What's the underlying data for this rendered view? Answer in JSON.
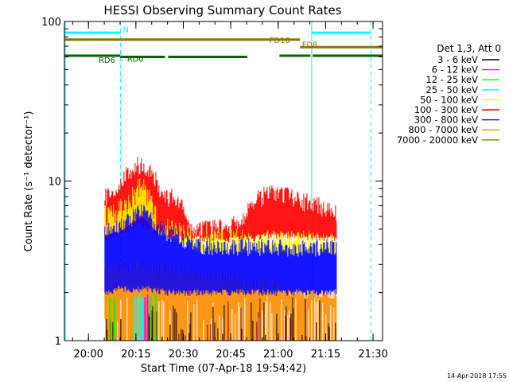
{
  "chart_data": {
    "type": "line",
    "title": "HESSI Observing Summary Count Rates",
    "xlabel": "Start Time (07-Apr-18 19:54:42)",
    "ylabel": "Count Rate (s⁻¹ detector⁻¹)",
    "yscale": "log",
    "ylim": [
      1,
      100
    ],
    "xlim_min": [
      -2.3,
      98.3
    ],
    "x_ticks": [
      {
        "t": 5.3,
        "label": "20:00"
      },
      {
        "t": 20.3,
        "label": "20:15"
      },
      {
        "t": 35.3,
        "label": "20:30"
      },
      {
        "t": 50.3,
        "label": "20:45"
      },
      {
        "t": 65.3,
        "label": "21:00"
      },
      {
        "t": 80.3,
        "label": "21:15"
      },
      {
        "t": 95.3,
        "label": "21:30"
      }
    ],
    "y_ticks": [
      {
        "v": 1,
        "label": "1"
      },
      {
        "v": 10,
        "label": "10"
      },
      {
        "v": 100,
        "label": "100"
      }
    ],
    "detector_label": "Det 1,3, Att 0",
    "series": [
      {
        "name": "3 - 6 keV",
        "color": "#000000"
      },
      {
        "name": "6 - 12 keV",
        "color": "#ff00ff"
      },
      {
        "name": "12 - 25 keV",
        "color": "#00ff00"
      },
      {
        "name": "25 - 50 keV",
        "color": "#00ffff"
      },
      {
        "name": "50 - 100 keV",
        "color": "#ffff00"
      },
      {
        "name": "100 - 300 keV",
        "color": "#ff0000"
      },
      {
        "name": "300 - 800 keV",
        "color": "#0000ff"
      },
      {
        "name": "800 - 7000 keV",
        "color": "#ff8c00"
      },
      {
        "name": "7000 - 20000 keV",
        "color": "#8b7500"
      }
    ],
    "flag_bars": [
      {
        "label": "N",
        "color": "#00ffff",
        "segments": [
          [
            -2.3,
            15.4
          ],
          [
            75.9,
            94.6
          ]
        ],
        "value": 85
      },
      {
        "label": "FD8",
        "color": "#8b7500",
        "segments": [
          [
            72.2,
            98.3
          ]
        ],
        "value": 69
      },
      {
        "label": "FD16",
        "color": "#8b7500",
        "segments": [
          [
            -2.3,
            72.2
          ]
        ],
        "value": 77
      },
      {
        "label": "RD0",
        "color": "#006400",
        "segments": [
          [
            15.4,
            29.5
          ],
          [
            30.5,
            55.5
          ]
        ],
        "value": 60
      },
      {
        "label": "RD6",
        "color": "#006400",
        "segments": [
          [
            -2.3,
            15.4
          ],
          [
            65.7,
            75.5
          ],
          [
            76.2,
            98.3
          ]
        ],
        "value": 61
      }
    ],
    "annotations": {
      "date_stamp": "14-Apr-2018 17:55"
    },
    "rate_profiles": {
      "t_start": 10.5,
      "t_end": 83.8,
      "red_upper": [
        [
          10.5,
          8.4
        ],
        [
          12.5,
          8.8
        ],
        [
          15,
          9.8
        ],
        [
          17.5,
          11.5
        ],
        [
          20,
          12.8
        ],
        [
          22,
          13.6
        ],
        [
          24,
          12.8
        ],
        [
          26,
          11.2
        ],
        [
          28,
          9.4
        ],
        [
          30,
          8.4
        ],
        [
          32,
          8.4
        ],
        [
          34,
          7.8
        ],
        [
          36,
          6.6
        ],
        [
          38,
          5.6
        ],
        [
          40,
          5.3
        ],
        [
          50,
          5.4
        ],
        [
          55,
          6.6
        ],
        [
          58,
          8.1
        ],
        [
          63,
          8.8
        ],
        [
          68,
          8.8
        ],
        [
          70,
          8.1
        ],
        [
          73,
          7.8
        ],
        [
          77,
          7.8
        ],
        [
          80,
          7.0
        ],
        [
          83.8,
          6.8
        ]
      ],
      "red_lower": [
        [
          10.5,
          4.4
        ],
        [
          15,
          4.7
        ],
        [
          20,
          5.3
        ],
        [
          25,
          5.0
        ],
        [
          30,
          4.5
        ],
        [
          40,
          4.3
        ],
        [
          55,
          4.3
        ],
        [
          63,
          4.6
        ],
        [
          70,
          4.5
        ],
        [
          80,
          4.4
        ],
        [
          83.8,
          4.4
        ]
      ],
      "yellow_upper": [
        [
          10.5,
          6.4
        ],
        [
          15,
          7.0
        ],
        [
          20,
          8.6
        ],
        [
          22,
          10.2
        ],
        [
          24,
          8.6
        ],
        [
          26,
          6.8
        ],
        [
          28,
          5.6
        ],
        [
          30,
          5.4
        ],
        [
          40,
          4.6
        ],
        [
          83.8,
          4.4
        ]
      ],
      "blue_upper": [
        [
          10.5,
          5.1
        ],
        [
          15,
          5.3
        ],
        [
          20,
          6.2
        ],
        [
          22,
          6.8
        ],
        [
          24,
          6.1
        ],
        [
          28,
          5.1
        ],
        [
          32,
          4.8
        ],
        [
          40,
          4.0
        ],
        [
          83.8,
          3.9
        ]
      ],
      "blue_lower": [
        [
          10.5,
          2.0
        ],
        [
          15,
          2.1
        ],
        [
          25,
          2.1
        ],
        [
          30,
          2.0
        ],
        [
          40,
          2.0
        ],
        [
          83.8,
          2.0
        ]
      ],
      "orange_upper": [
        [
          10.5,
          2.9
        ],
        [
          20,
          3.1
        ],
        [
          30,
          3.0
        ],
        [
          40,
          2.8
        ],
        [
          60,
          2.4
        ],
        [
          83.8,
          2.0
        ]
      ]
    }
  }
}
